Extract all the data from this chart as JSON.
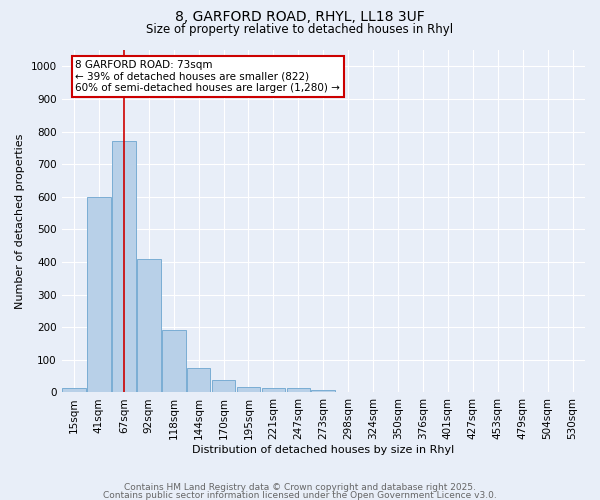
{
  "title_line1": "8, GARFORD ROAD, RHYL, LL18 3UF",
  "title_line2": "Size of property relative to detached houses in Rhyl",
  "xlabel": "Distribution of detached houses by size in Rhyl",
  "ylabel": "Number of detached properties",
  "categories": [
    "15sqm",
    "41sqm",
    "67sqm",
    "92sqm",
    "118sqm",
    "144sqm",
    "170sqm",
    "195sqm",
    "221sqm",
    "247sqm",
    "273sqm",
    "298sqm",
    "324sqm",
    "350sqm",
    "376sqm",
    "401sqm",
    "427sqm",
    "453sqm",
    "479sqm",
    "504sqm",
    "530sqm"
  ],
  "values": [
    15,
    600,
    770,
    410,
    193,
    75,
    38,
    18,
    13,
    13,
    8,
    0,
    0,
    0,
    0,
    0,
    0,
    0,
    0,
    0,
    0
  ],
  "bar_color": "#b8d0e8",
  "bar_edge_color": "#7aadd4",
  "vline_x_index": 2,
  "vline_color": "#cc0000",
  "annotation_text": "8 GARFORD ROAD: 73sqm\n← 39% of detached houses are smaller (822)\n60% of semi-detached houses are larger (1,280) →",
  "annotation_box_color": "#ffffff",
  "annotation_box_edge": "#cc0000",
  "ylim": [
    0,
    1050
  ],
  "yticks": [
    0,
    100,
    200,
    300,
    400,
    500,
    600,
    700,
    800,
    900,
    1000
  ],
  "background_color": "#e8eef8",
  "grid_color": "#ffffff",
  "footnote_line1": "Contains HM Land Registry data © Crown copyright and database right 2025.",
  "footnote_line2": "Contains public sector information licensed under the Open Government Licence v3.0.",
  "title_fontsize": 10,
  "subtitle_fontsize": 8.5,
  "axis_label_fontsize": 8,
  "tick_fontsize": 7.5,
  "annot_fontsize": 7.5,
  "footnote_fontsize": 6.5
}
